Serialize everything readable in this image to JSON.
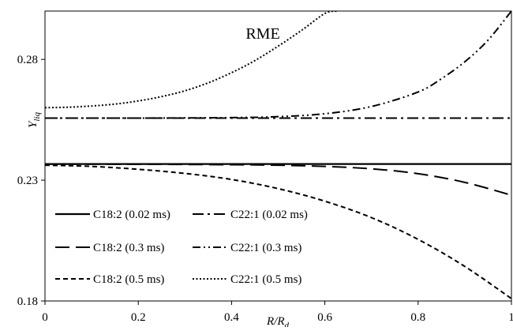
{
  "chart_data": {
    "type": "line",
    "title": "RME",
    "xlabel": "R/R_d",
    "ylabel": "Y_liq",
    "xlim": [
      0,
      1
    ],
    "ylim": [
      0.18,
      0.3
    ],
    "xticks": [
      0,
      0.2,
      0.4,
      0.6,
      0.8,
      1
    ],
    "xtick_labels": [
      "0",
      "0.2",
      "0.4",
      "0.6",
      "0.8",
      "1"
    ],
    "yticks": [
      0.18,
      0.23,
      0.28
    ],
    "ytick_labels": [
      "0.18",
      "0.23",
      "0.28"
    ],
    "grid": false,
    "legend_position": "bottom-left",
    "series": [
      {
        "name": "C18:2 (0.02 ms)",
        "dash": "solid",
        "x": [
          0,
          0.2,
          0.4,
          0.6,
          0.8,
          1.0
        ],
        "y": [
          0.2367,
          0.2367,
          0.2367,
          0.2367,
          0.2367,
          0.2367
        ]
      },
      {
        "name": "C22:1 (0.02 ms)",
        "dash": "dashdot",
        "x": [
          0,
          0.2,
          0.4,
          0.6,
          0.8,
          1.0
        ],
        "y": [
          0.2557,
          0.2557,
          0.2557,
          0.2557,
          0.2557,
          0.2557
        ]
      },
      {
        "name": "C18:2 (0.3 ms)",
        "dash": "longdash",
        "x": [
          0,
          0.2,
          0.4,
          0.5,
          0.6,
          0.7,
          0.8,
          0.9,
          1.0
        ],
        "y": [
          0.2367,
          0.2366,
          0.2364,
          0.2362,
          0.2357,
          0.2347,
          0.2327,
          0.2291,
          0.2238
        ]
      },
      {
        "name": "C22:1 (0.3 ms)",
        "dash": "dashdotdot",
        "x": [
          0,
          0.2,
          0.4,
          0.5,
          0.6,
          0.7,
          0.8,
          0.85,
          0.9,
          0.95,
          1.0
        ],
        "y": [
          0.2557,
          0.2557,
          0.2559,
          0.2563,
          0.2575,
          0.2605,
          0.2665,
          0.272,
          0.279,
          0.288,
          0.3
        ]
      },
      {
        "name": "C18:2  (0.5 ms)",
        "dash": "shortdash",
        "x": [
          0,
          0.1,
          0.2,
          0.3,
          0.4,
          0.5,
          0.6,
          0.7,
          0.8,
          0.9,
          1.0
        ],
        "y": [
          0.2362,
          0.2357,
          0.2345,
          0.2328,
          0.2303,
          0.2265,
          0.2213,
          0.2145,
          0.2055,
          0.1943,
          0.181
        ]
      },
      {
        "name": "C22:1 (0.5 ms)",
        "dash": "dotted",
        "x": [
          0,
          0.05,
          0.1,
          0.15,
          0.2,
          0.25,
          0.3,
          0.35,
          0.4,
          0.45,
          0.5,
          0.55,
          0.6,
          0.625
        ],
        "y": [
          0.26,
          0.2602,
          0.2607,
          0.2615,
          0.2628,
          0.2646,
          0.267,
          0.2703,
          0.2745,
          0.2795,
          0.2855,
          0.292,
          0.299,
          0.3
        ]
      }
    ]
  }
}
